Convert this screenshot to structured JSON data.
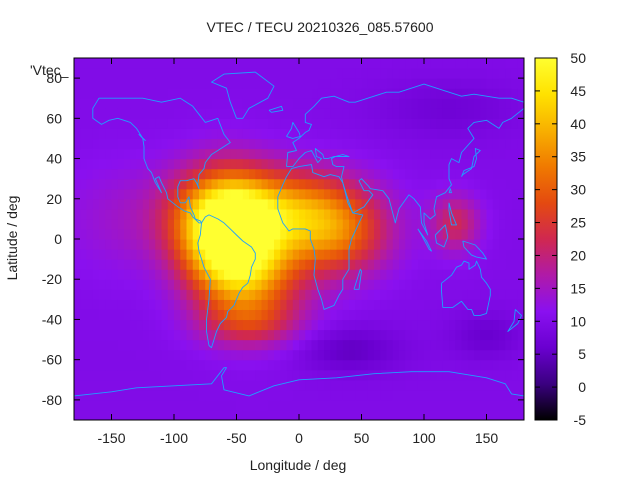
{
  "chart_data": {
    "type": "heatmap",
    "title": "VTEC / TECU 20210326_085.57600",
    "key_label": "'Vtec_",
    "xlabel": "Longitude / deg",
    "ylabel": "Latitude / deg",
    "xlim": [
      -180,
      180
    ],
    "ylim": [
      -90,
      90
    ],
    "x_ticks": [
      -150,
      -100,
      -50,
      0,
      50,
      100,
      150
    ],
    "y_ticks": [
      -80,
      -60,
      -40,
      -20,
      0,
      20,
      40,
      60,
      80
    ],
    "colorbar": {
      "range": [
        -5,
        50
      ],
      "ticks": [
        -5,
        0,
        5,
        10,
        15,
        20,
        25,
        30,
        35,
        40,
        45,
        50
      ],
      "colormap": [
        "#000000",
        "#3a0080",
        "#6a00d0",
        "#8a10f0",
        "#b01aa8",
        "#d02850",
        "#e44a10",
        "#f07a00",
        "#f8b000",
        "#ffe200",
        "#ffff30"
      ]
    },
    "coastline_color": "#1ea0ff",
    "grid": false,
    "background_value": 10,
    "features": [
      {
        "lon": -55,
        "lat": 2,
        "sigma_lon": 26,
        "sigma_lat": 20,
        "amplitude": 40
      },
      {
        "lon": -70,
        "lat": 12,
        "sigma_lon": 30,
        "sigma_lat": 16,
        "amplitude": 12
      },
      {
        "lon": 0,
        "lat": 15,
        "sigma_lon": 38,
        "sigma_lat": 14,
        "amplitude": 22
      },
      {
        "lon": 30,
        "lat": 0,
        "sigma_lon": 30,
        "sigma_lat": 14,
        "amplitude": 16
      },
      {
        "lon": -35,
        "lat": -20,
        "sigma_lon": 30,
        "sigma_lat": 18,
        "amplitude": 16
      },
      {
        "lon": -40,
        "lat": -42,
        "sigma_lon": 28,
        "sigma_lat": 8,
        "amplitude": 8
      },
      {
        "lon": 125,
        "lat": 8,
        "sigma_lon": 14,
        "sigma_lat": 10,
        "amplitude": 12
      },
      {
        "lon": -140,
        "lat": 10,
        "sigma_lon": 40,
        "sigma_lat": 20,
        "amplitude": 4
      },
      {
        "lon": 40,
        "lat": -55,
        "sigma_lon": 30,
        "sigma_lat": 8,
        "amplitude": -5
      },
      {
        "lon": 150,
        "lat": -48,
        "sigma_lon": 20,
        "sigma_lat": 8,
        "amplitude": -4
      },
      {
        "lon": 120,
        "lat": 65,
        "sigma_lon": 40,
        "sigma_lat": 10,
        "amplitude": -3
      }
    ],
    "coastlines": [
      [
        [
          -165,
          65
        ],
        [
          -160,
          70
        ],
        [
          -140,
          70
        ],
        [
          -125,
          70
        ],
        [
          -110,
          68
        ],
        [
          -95,
          70
        ],
        [
          -85,
          66
        ],
        [
          -80,
          62
        ],
        [
          -75,
          58
        ],
        [
          -65,
          60
        ],
        [
          -60,
          52
        ],
        [
          -55,
          48
        ],
        [
          -65,
          44
        ],
        [
          -70,
          42
        ],
        [
          -75,
          38
        ],
        [
          -76,
          35
        ],
        [
          -80,
          32
        ],
        [
          -81,
          27
        ],
        [
          -80,
          25
        ],
        [
          -82,
          28
        ],
        [
          -84,
          30
        ],
        [
          -90,
          29
        ],
        [
          -95,
          29
        ],
        [
          -97,
          26
        ],
        [
          -97,
          21
        ],
        [
          -95,
          18
        ],
        [
          -91,
          18
        ],
        [
          -88,
          21
        ],
        [
          -87,
          16
        ],
        [
          -84,
          12
        ],
        [
          -83,
          10
        ],
        [
          -79,
          9
        ],
        [
          -78,
          8
        ],
        [
          -80,
          8
        ],
        [
          -85,
          11
        ],
        [
          -87,
          13
        ],
        [
          -92,
          14
        ],
        [
          -97,
          16
        ],
        [
          -105,
          20
        ],
        [
          -106,
          23
        ],
        [
          -110,
          28
        ],
        [
          -112,
          31
        ],
        [
          -115,
          30
        ],
        [
          -110,
          23
        ],
        [
          -115,
          28
        ],
        [
          -118,
          33
        ],
        [
          -121,
          35
        ],
        [
          -124,
          40
        ],
        [
          -124,
          46
        ],
        [
          -125,
          50
        ],
        [
          -130,
          55
        ],
        [
          -135,
          58
        ],
        [
          -145,
          60
        ],
        [
          -152,
          59
        ],
        [
          -158,
          57
        ],
        [
          -165,
          60
        ],
        [
          -165,
          65
        ]
      ],
      [
        [
          -78,
          8
        ],
        [
          -75,
          11
        ],
        [
          -72,
          12
        ],
        [
          -65,
          10
        ],
        [
          -60,
          8
        ],
        [
          -55,
          5
        ],
        [
          -50,
          2
        ],
        [
          -45,
          -1
        ],
        [
          -38,
          -4
        ],
        [
          -35,
          -7
        ],
        [
          -35,
          -10
        ],
        [
          -38,
          -14
        ],
        [
          -39,
          -18
        ],
        [
          -41,
          -22
        ],
        [
          -45,
          -24
        ],
        [
          -48,
          -27
        ],
        [
          -52,
          -33
        ],
        [
          -57,
          -36
        ],
        [
          -58,
          -39
        ],
        [
          -63,
          -42
        ],
        [
          -66,
          -46
        ],
        [
          -68,
          -50
        ],
        [
          -70,
          -54
        ],
        [
          -72,
          -53
        ],
        [
          -74,
          -46
        ],
        [
          -74,
          -40
        ],
        [
          -72,
          -30
        ],
        [
          -71,
          -20
        ],
        [
          -76,
          -14
        ],
        [
          -80,
          -6
        ],
        [
          -81,
          -2
        ],
        [
          -79,
          2
        ],
        [
          -78,
          8
        ]
      ],
      [
        [
          -50,
          60
        ],
        [
          -45,
          60
        ],
        [
          -40,
          65
        ],
        [
          -25,
          70
        ],
        [
          -20,
          76
        ],
        [
          -35,
          83
        ],
        [
          -60,
          82
        ],
        [
          -70,
          78
        ],
        [
          -58,
          75
        ],
        [
          -55,
          68
        ],
        [
          -50,
          60
        ]
      ],
      [
        [
          -17,
          15
        ],
        [
          -17,
          21
        ],
        [
          -13,
          27
        ],
        [
          -10,
          31
        ],
        [
          -6,
          35
        ],
        [
          0,
          36
        ],
        [
          10,
          37
        ],
        [
          11,
          33
        ],
        [
          20,
          31
        ],
        [
          25,
          32
        ],
        [
          32,
          31
        ],
        [
          35,
          28
        ],
        [
          38,
          22
        ],
        [
          43,
          13
        ],
        [
          51,
          12
        ],
        [
          48,
          8
        ],
        [
          42,
          0
        ],
        [
          40,
          -5
        ],
        [
          40,
          -10
        ],
        [
          40,
          -15
        ],
        [
          35,
          -20
        ],
        [
          35,
          -25
        ],
        [
          32,
          -28
        ],
        [
          28,
          -33
        ],
        [
          20,
          -35
        ],
        [
          18,
          -30
        ],
        [
          15,
          -25
        ],
        [
          12,
          -18
        ],
        [
          13,
          -10
        ],
        [
          12,
          -5
        ],
        [
          9,
          0
        ],
        [
          9,
          4
        ],
        [
          5,
          5
        ],
        [
          0,
          5
        ],
        [
          -5,
          5
        ],
        [
          -8,
          4
        ],
        [
          -13,
          8
        ],
        [
          -17,
          15
        ]
      ],
      [
        [
          -10,
          36
        ],
        [
          -9,
          43
        ],
        [
          -2,
          44
        ],
        [
          -5,
          48
        ],
        [
          0,
          50
        ],
        [
          5,
          53
        ],
        [
          8,
          54
        ],
        [
          10,
          57
        ],
        [
          5,
          58
        ],
        [
          5,
          62
        ],
        [
          12,
          66
        ],
        [
          18,
          70
        ],
        [
          28,
          71
        ],
        [
          40,
          68
        ],
        [
          45,
          68
        ],
        [
          55,
          70
        ],
        [
          70,
          73
        ],
        [
          80,
          73
        ],
        [
          100,
          77
        ],
        [
          115,
          74
        ],
        [
          130,
          71
        ],
        [
          140,
          72
        ],
        [
          160,
          70
        ],
        [
          170,
          70
        ],
        [
          180,
          68
        ],
        [
          180,
          65
        ],
        [
          170,
          60
        ],
        [
          163,
          58
        ],
        [
          160,
          55
        ],
        [
          150,
          59
        ],
        [
          140,
          58
        ],
        [
          135,
          55
        ],
        [
          140,
          50
        ],
        [
          130,
          43
        ],
        [
          128,
          38
        ],
        [
          122,
          40
        ],
        [
          120,
          37
        ],
        [
          120,
          30
        ],
        [
          122,
          27
        ],
        [
          117,
          23
        ],
        [
          110,
          21
        ],
        [
          108,
          15
        ],
        [
          109,
          12
        ],
        [
          105,
          10
        ],
        [
          100,
          13
        ],
        [
          100,
          8
        ],
        [
          103,
          2
        ],
        [
          98,
          8
        ],
        [
          97,
          16
        ],
        [
          92,
          20
        ],
        [
          88,
          22
        ],
        [
          80,
          15
        ],
        [
          77,
          8
        ],
        [
          72,
          20
        ],
        [
          67,
          24
        ],
        [
          57,
          25
        ],
        [
          56,
          26
        ],
        [
          50,
          30
        ],
        [
          48,
          29
        ],
        [
          52,
          24
        ],
        [
          56,
          24
        ],
        [
          59,
          22
        ],
        [
          52,
          16
        ],
        [
          43,
          13
        ],
        [
          39,
          18
        ],
        [
          35,
          28
        ],
        [
          34,
          31
        ],
        [
          36,
          36
        ],
        [
          30,
          36
        ],
        [
          27,
          37
        ],
        [
          26,
          40
        ],
        [
          29,
          41
        ],
        [
          35,
          42
        ],
        [
          40,
          41
        ],
        [
          28,
          41
        ],
        [
          23,
          40
        ],
        [
          20,
          40
        ],
        [
          19,
          42
        ],
        [
          13,
          45
        ],
        [
          14,
          41
        ],
        [
          18,
          40
        ],
        [
          15,
          38
        ],
        [
          10,
          44
        ],
        [
          5,
          43
        ],
        [
          0,
          40
        ],
        [
          -5,
          36
        ],
        [
          -10,
          36
        ]
      ],
      [
        [
          114,
          -22
        ],
        [
          114,
          -26
        ],
        [
          115,
          -34
        ],
        [
          123,
          -34
        ],
        [
          130,
          -31
        ],
        [
          135,
          -35
        ],
        [
          138,
          -35
        ],
        [
          140,
          -38
        ],
        [
          145,
          -38
        ],
        [
          150,
          -37
        ],
        [
          153,
          -28
        ],
        [
          153,
          -25
        ],
        [
          150,
          -22
        ],
        [
          146,
          -19
        ],
        [
          145,
          -15
        ],
        [
          142,
          -11
        ],
        [
          141,
          -13
        ],
        [
          136,
          -15
        ],
        [
          136,
          -12
        ],
        [
          132,
          -11
        ],
        [
          130,
          -13
        ],
        [
          126,
          -14
        ],
        [
          122,
          -18
        ],
        [
          114,
          -22
        ]
      ],
      [
        [
          -180,
          -78
        ],
        [
          -150,
          -76
        ],
        [
          -130,
          -74
        ],
        [
          -100,
          -73
        ],
        [
          -70,
          -72
        ],
        [
          -60,
          -64
        ],
        [
          -58,
          -64
        ],
        [
          -62,
          -68
        ],
        [
          -60,
          -75
        ],
        [
          -40,
          -78
        ],
        [
          -20,
          -73
        ],
        [
          0,
          -70
        ],
        [
          30,
          -69
        ],
        [
          60,
          -67
        ],
        [
          90,
          -66
        ],
        [
          120,
          -66
        ],
        [
          150,
          -69
        ],
        [
          165,
          -72
        ],
        [
          170,
          -77
        ],
        [
          180,
          -78
        ]
      ],
      [
        [
          95,
          5
        ],
        [
          102,
          -1
        ],
        [
          106,
          -6
        ],
        [
          104,
          -5
        ],
        [
          98,
          2
        ],
        [
          95,
          5
        ]
      ],
      [
        [
          109,
          2
        ],
        [
          117,
          7
        ],
        [
          119,
          1
        ],
        [
          116,
          -4
        ],
        [
          110,
          -2
        ],
        [
          109,
          2
        ]
      ],
      [
        [
          131,
          -1
        ],
        [
          141,
          -3
        ],
        [
          147,
          -7
        ],
        [
          150,
          -10
        ],
        [
          142,
          -9
        ],
        [
          138,
          -8
        ],
        [
          132,
          -4
        ],
        [
          131,
          -1
        ]
      ],
      [
        [
          44,
          -25
        ],
        [
          49,
          -15
        ],
        [
          50,
          -16
        ],
        [
          48,
          -25
        ],
        [
          44,
          -25
        ]
      ],
      [
        [
          130,
          31
        ],
        [
          132,
          34
        ],
        [
          140,
          36
        ],
        [
          142,
          40
        ],
        [
          141,
          45
        ],
        [
          145,
          44
        ],
        [
          140,
          41
        ],
        [
          138,
          35
        ],
        [
          131,
          32
        ],
        [
          130,
          31
        ]
      ],
      [
        [
          -10,
          51
        ],
        [
          -6,
          55
        ],
        [
          -5,
          58
        ],
        [
          0,
          53
        ],
        [
          1,
          51
        ],
        [
          -5,
          50
        ],
        [
          -10,
          51
        ]
      ],
      [
        [
          173,
          -35
        ],
        [
          178,
          -38
        ],
        [
          175,
          -42
        ],
        [
          167,
          -46
        ],
        [
          172,
          -41
        ],
        [
          173,
          -35
        ]
      ],
      [
        [
          -24,
          64
        ],
        [
          -14,
          66
        ],
        [
          -13,
          64
        ],
        [
          -22,
          63
        ],
        [
          -24,
          64
        ]
      ],
      [
        [
          -125,
          50
        ],
        [
          -123,
          49
        ],
        [
          -128,
          52
        ],
        [
          -125,
          50
        ]
      ],
      [
        [
          120,
          23
        ],
        [
          121,
          25
        ],
        [
          122,
          23
        ],
        [
          120,
          23
        ]
      ],
      [
        [
          120,
          18
        ],
        [
          122,
          13
        ],
        [
          124,
          10
        ],
        [
          126,
          7
        ],
        [
          122,
          7
        ],
        [
          120,
          14
        ],
        [
          120,
          18
        ]
      ]
    ]
  }
}
